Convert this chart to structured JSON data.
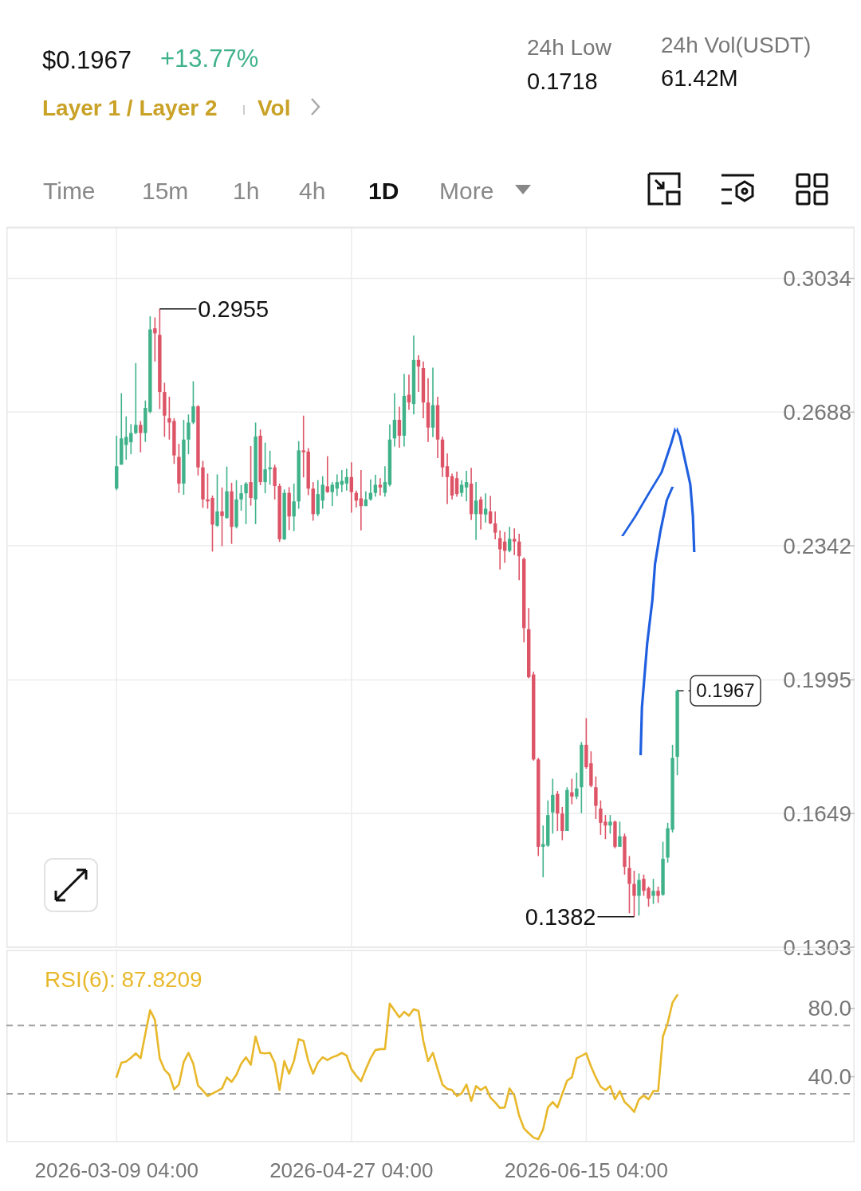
{
  "chart_data": [
    {
      "type": "candlestick",
      "annotations": [
        "$0.1967",
        "+13.77%",
        "Layer 1 / Layer 2",
        "Vol",
        "24h Low",
        "0.1718",
        "24h Vol(USDT)",
        "61.42M",
        "Time",
        "15m",
        "1h",
        "4h",
        "1D",
        "More",
        {
          "text": "0.2955",
          "x": "2026-03-18",
          "y": 0.2955
        },
        {
          "text": "0.1382",
          "x": "2026-06-25",
          "y": 0.1382
        }
      ],
      "x": [
        "2026-03-09",
        "2026-03-10",
        "2026-03-11",
        "2026-03-12",
        "2026-03-13",
        "2026-03-14",
        "2026-03-15",
        "2026-03-16",
        "2026-03-17",
        "2026-03-18",
        "2026-03-19",
        "2026-03-20",
        "2026-03-21",
        "2026-03-22",
        "2026-03-23",
        "2026-03-24",
        "2026-03-25",
        "2026-03-26",
        "2026-03-27",
        "2026-03-28",
        "2026-03-29",
        "2026-03-30",
        "2026-03-31",
        "2026-04-01",
        "2026-04-02",
        "2026-04-03",
        "2026-04-04",
        "2026-04-05",
        "2026-04-06",
        "2026-04-07",
        "2026-04-08",
        "2026-04-09",
        "2026-04-10",
        "2026-04-11",
        "2026-04-12",
        "2026-04-13",
        "2026-04-14",
        "2026-04-15",
        "2026-04-16",
        "2026-04-17",
        "2026-04-18",
        "2026-04-19",
        "2026-04-20",
        "2026-04-21",
        "2026-04-22",
        "2026-04-23",
        "2026-04-24",
        "2026-04-25",
        "2026-04-26",
        "2026-04-27",
        "2026-04-28",
        "2026-04-29",
        "2026-04-30",
        "2026-05-01",
        "2026-05-02",
        "2026-05-03",
        "2026-05-04",
        "2026-05-05",
        "2026-05-06",
        "2026-05-07",
        "2026-05-08",
        "2026-05-09",
        "2026-05-10",
        "2026-05-11",
        "2026-05-12",
        "2026-05-13",
        "2026-05-14",
        "2026-05-15",
        "2026-05-16",
        "2026-05-17",
        "2026-05-18",
        "2026-05-19",
        "2026-05-20",
        "2026-05-21",
        "2026-05-22",
        "2026-05-23",
        "2026-05-24",
        "2026-05-25",
        "2026-05-26",
        "2026-05-27",
        "2026-05-28",
        "2026-05-29",
        "2026-05-30",
        "2026-05-31",
        "2026-06-01",
        "2026-06-02",
        "2026-06-03",
        "2026-06-04",
        "2026-06-05",
        "2026-06-06",
        "2026-06-07",
        "2026-06-08",
        "2026-06-09",
        "2026-06-10",
        "2026-06-11",
        "2026-06-12",
        "2026-06-13",
        "2026-06-14",
        "2026-06-15",
        "2026-06-16",
        "2026-06-17",
        "2026-06-18",
        "2026-06-19",
        "2026-06-20",
        "2026-06-21",
        "2026-06-22",
        "2026-06-23",
        "2026-06-24",
        "2026-06-25",
        "2026-06-26",
        "2026-06-27",
        "2026-06-28",
        "2026-06-29",
        "2026-06-30",
        "2026-07-01",
        "2026-07-02",
        "2026-07-03",
        "2026-07-04"
      ],
      "ohlc": [
        [
          0.249,
          0.2627,
          0.2486,
          0.2548
        ],
        [
          0.2552,
          0.2737,
          0.2552,
          0.262
        ],
        [
          0.2603,
          0.2677,
          0.2565,
          0.2624
        ],
        [
          0.261,
          0.2657,
          0.2579,
          0.2634
        ],
        [
          0.2634,
          0.2815,
          0.2631,
          0.2655
        ],
        [
          0.2655,
          0.2665,
          0.2584,
          0.2634
        ],
        [
          0.2634,
          0.2718,
          0.2611,
          0.2699
        ],
        [
          0.2689,
          0.2936,
          0.2685,
          0.2902
        ],
        [
          0.2905,
          0.2933,
          0.2819,
          0.2892
        ],
        [
          0.2888,
          0.2955,
          0.2696,
          0.274
        ],
        [
          0.274,
          0.2764,
          0.2624,
          0.2679
        ],
        [
          0.2672,
          0.2728,
          0.2617,
          0.2661
        ],
        [
          0.2665,
          0.2672,
          0.2554,
          0.2576
        ],
        [
          0.2572,
          0.2606,
          0.2479,
          0.2503
        ],
        [
          0.2503,
          0.2668,
          0.2474,
          0.2617
        ],
        [
          0.2617,
          0.2682,
          0.2579,
          0.2661
        ],
        [
          0.2661,
          0.2768,
          0.2657,
          0.2703
        ],
        [
          0.2703,
          0.2706,
          0.2524,
          0.2545
        ],
        [
          0.2545,
          0.2562,
          0.244,
          0.2462
        ],
        [
          0.2462,
          0.2529,
          0.2438,
          0.2457
        ],
        [
          0.2466,
          0.2472,
          0.2327,
          0.2397
        ],
        [
          0.2394,
          0.2527,
          0.2391,
          0.2431
        ],
        [
          0.2431,
          0.2493,
          0.2341,
          0.2419
        ],
        [
          0.2414,
          0.2547,
          0.2412,
          0.2483
        ],
        [
          0.2483,
          0.2505,
          0.2347,
          0.2391
        ],
        [
          0.2391,
          0.2512,
          0.2387,
          0.2462
        ],
        [
          0.2462,
          0.2499,
          0.2433,
          0.2478
        ],
        [
          0.2478,
          0.2507,
          0.2398,
          0.2503
        ],
        [
          0.2507,
          0.26,
          0.2446,
          0.2466
        ],
        [
          0.2462,
          0.2661,
          0.2398,
          0.2625
        ],
        [
          0.2627,
          0.2643,
          0.2499,
          0.2507
        ],
        [
          0.2507,
          0.2609,
          0.2478,
          0.254
        ],
        [
          0.254,
          0.2588,
          0.25,
          0.2545
        ],
        [
          0.2545,
          0.2552,
          0.2462,
          0.2497
        ],
        [
          0.2497,
          0.2503,
          0.2352,
          0.2359
        ],
        [
          0.2359,
          0.2488,
          0.2357,
          0.2479
        ],
        [
          0.2479,
          0.2494,
          0.2383,
          0.2418
        ],
        [
          0.2418,
          0.2503,
          0.238,
          0.2457
        ],
        [
          0.2457,
          0.2613,
          0.2438,
          0.2589
        ],
        [
          0.2589,
          0.2679,
          0.2519,
          0.2584
        ],
        [
          0.2586,
          0.2595,
          0.2473,
          0.249
        ],
        [
          0.249,
          0.2507,
          0.2407,
          0.2424
        ],
        [
          0.2424,
          0.2512,
          0.2419,
          0.2476
        ],
        [
          0.2459,
          0.2522,
          0.2438,
          0.25
        ],
        [
          0.2496,
          0.2574,
          0.2479,
          0.2481
        ],
        [
          0.2481,
          0.2507,
          0.2445,
          0.25
        ],
        [
          0.249,
          0.2527,
          0.2471,
          0.2507
        ],
        [
          0.25,
          0.2538,
          0.2481,
          0.251
        ],
        [
          0.2503,
          0.2542,
          0.2485,
          0.252
        ],
        [
          0.252,
          0.2558,
          0.2428,
          0.2481
        ],
        [
          0.2479,
          0.2485,
          0.2441,
          0.2459
        ],
        [
          0.2465,
          0.2538,
          0.2382,
          0.2445
        ],
        [
          0.2445,
          0.2483,
          0.2445,
          0.2462
        ],
        [
          0.2462,
          0.2514,
          0.2459,
          0.2479
        ],
        [
          0.2479,
          0.2526,
          0.2469,
          0.25
        ],
        [
          0.25,
          0.2517,
          0.2472,
          0.2493
        ],
        [
          0.2479,
          0.2548,
          0.2469,
          0.2507
        ],
        [
          0.25,
          0.2656,
          0.2496,
          0.2617
        ],
        [
          0.262,
          0.2737,
          0.2599,
          0.2668
        ],
        [
          0.2668,
          0.2702,
          0.2596,
          0.2627
        ],
        [
          0.2627,
          0.2787,
          0.2599,
          0.273
        ],
        [
          0.2733,
          0.2785,
          0.2694,
          0.2713
        ],
        [
          0.2709,
          0.2886,
          0.2682,
          0.2823
        ],
        [
          0.2823,
          0.2835,
          0.274,
          0.2806
        ],
        [
          0.2802,
          0.2819,
          0.2672,
          0.2713
        ],
        [
          0.2713,
          0.2776,
          0.2611,
          0.2648
        ],
        [
          0.2648,
          0.2803,
          0.2623,
          0.2706
        ],
        [
          0.2706,
          0.2728,
          0.2569,
          0.2617
        ],
        [
          0.2617,
          0.2624,
          0.252,
          0.2545
        ],
        [
          0.2548,
          0.2581,
          0.245,
          0.252
        ],
        [
          0.2522,
          0.2529,
          0.2462,
          0.2472
        ],
        [
          0.2517,
          0.2534,
          0.2469,
          0.2476
        ],
        [
          0.2479,
          0.2512,
          0.2469,
          0.25
        ],
        [
          0.2493,
          0.2536,
          0.2457,
          0.2507
        ],
        [
          0.2503,
          0.2544,
          0.2409,
          0.2424
        ],
        [
          0.2424,
          0.2507,
          0.2357,
          0.2459
        ],
        [
          0.2462,
          0.2469,
          0.2384,
          0.2424
        ],
        [
          0.2423,
          0.2478,
          0.2402,
          0.2438
        ],
        [
          0.2431,
          0.2471,
          0.2398,
          0.24
        ],
        [
          0.24,
          0.2431,
          0.2359,
          0.2376
        ],
        [
          0.2362,
          0.2382,
          0.2281,
          0.2333
        ],
        [
          0.2353,
          0.2378,
          0.2298,
          0.2329
        ],
        [
          0.2329,
          0.2391,
          0.2325,
          0.236
        ],
        [
          0.236,
          0.2387,
          0.2318,
          0.2353
        ],
        [
          0.2353,
          0.2373,
          0.2253,
          0.2315
        ],
        [
          0.2308,
          0.2312,
          0.2092,
          0.2129
        ],
        [
          0.2126,
          0.2181,
          0.1999,
          0.2002
        ],
        [
          0.2009,
          0.2016,
          0.1786,
          0.1789
        ],
        [
          0.1789,
          0.1793,
          0.1539,
          0.1563
        ],
        [
          0.1563,
          0.1618,
          0.1484,
          0.157
        ],
        [
          0.1566,
          0.1683,
          0.1563,
          0.1645
        ],
        [
          0.1652,
          0.1739,
          0.1597,
          0.1697
        ],
        [
          0.17,
          0.1707,
          0.1604,
          0.1649
        ],
        [
          0.1649,
          0.1666,
          0.158,
          0.1604
        ],
        [
          0.1604,
          0.1717,
          0.1604,
          0.171
        ],
        [
          0.1704,
          0.1739,
          0.1673,
          0.1693
        ],
        [
          0.1693,
          0.1755,
          0.1686,
          0.1714
        ],
        [
          0.1717,
          0.1834,
          0.165,
          0.1827
        ],
        [
          0.1827,
          0.1896,
          0.1765,
          0.1769
        ],
        [
          0.1779,
          0.181,
          0.1717,
          0.1721
        ],
        [
          0.1717,
          0.1745,
          0.1635,
          0.1669
        ],
        [
          0.1662,
          0.1683,
          0.1594,
          0.1625
        ],
        [
          0.1628,
          0.1645,
          0.1583,
          0.1618
        ],
        [
          0.1618,
          0.1645,
          0.1597,
          0.1628
        ],
        [
          0.1628,
          0.1631,
          0.1559,
          0.1563
        ],
        [
          0.1563,
          0.1628,
          0.1563,
          0.159
        ],
        [
          0.159,
          0.1597,
          0.1491,
          0.1511
        ],
        [
          0.1508,
          0.1539,
          0.1391,
          0.1467
        ],
        [
          0.1467,
          0.1501,
          0.1382,
          0.1436
        ],
        [
          0.1436,
          0.1494,
          0.1385,
          0.1477
        ],
        [
          0.148,
          0.1491,
          0.1436,
          0.1449
        ],
        [
          0.1456,
          0.146,
          0.1408,
          0.1429
        ],
        [
          0.1436,
          0.148,
          0.1415,
          0.1449
        ],
        [
          0.1449,
          0.146,
          0.1418,
          0.1436
        ],
        [
          0.1439,
          0.1576,
          0.1436,
          0.1532
        ],
        [
          0.1535,
          0.1625,
          0.1522,
          0.1611
        ],
        [
          0.1607,
          0.1827,
          0.16,
          0.1793
        ],
        [
          0.1796,
          0.197,
          0.1748,
          0.1967
        ]
      ],
      "colors": [
        "#3fb28a",
        "#3fb28a",
        "#3fb28a",
        "#3fb28a",
        "#3fb28a",
        "#dd5467",
        "#3fb28a",
        "#3fb28a",
        "#dd5467",
        "#dd5467",
        "#dd5467",
        "#dd5467",
        "#dd5467",
        "#dd5467",
        "#3fb28a",
        "#3fb28a",
        "#3fb28a",
        "#dd5467",
        "#dd5467",
        "#dd5467",
        "#dd5467",
        "#3fb28a",
        "#dd5467",
        "#3fb28a",
        "#dd5467",
        "#3fb28a",
        "#3fb28a",
        "#3fb28a",
        "#dd5467",
        "#3fb28a",
        "#dd5467",
        "#3fb28a",
        "#3fb28a",
        "#dd5467",
        "#dd5467",
        "#3fb28a",
        "#dd5467",
        "#3fb28a",
        "#3fb28a",
        "#dd5467",
        "#dd5467",
        "#dd5467",
        "#3fb28a",
        "#3fb28a",
        "#dd5467",
        "#3fb28a",
        "#3fb28a",
        "#3fb28a",
        "#3fb28a",
        "#dd5467",
        "#dd5467",
        "#dd5467",
        "#3fb28a",
        "#3fb28a",
        "#3fb28a",
        "#dd5467",
        "#3fb28a",
        "#3fb28a",
        "#3fb28a",
        "#dd5467",
        "#3fb28a",
        "#dd5467",
        "#3fb28a",
        "#dd5467",
        "#dd5467",
        "#dd5467",
        "#3fb28a",
        "#dd5467",
        "#dd5467",
        "#dd5467",
        "#dd5467",
        "#dd5467",
        "#3fb28a",
        "#3fb28a",
        "#dd5467",
        "#3fb28a",
        "#dd5467",
        "#3fb28a",
        "#dd5467",
        "#dd5467",
        "#dd5467",
        "#dd5467",
        "#3fb28a",
        "#dd5467",
        "#dd5467",
        "#dd5467",
        "#dd5467",
        "#dd5467",
        "#dd5467",
        "#3fb28a",
        "#3fb28a",
        "#3fb28a",
        "#dd5467",
        "#dd5467",
        "#3fb28a",
        "#dd5467",
        "#3fb28a",
        "#3fb28a",
        "#dd5467",
        "#dd5467",
        "#dd5467",
        "#dd5467",
        "#dd5467",
        "#3fb28a",
        "#dd5467",
        "#3fb28a",
        "#dd5467",
        "#dd5467",
        "#dd5467",
        "#3fb28a",
        "#dd5467",
        "#dd5467",
        "#3fb28a",
        "#dd5467",
        "#3fb28a",
        "#3fb28a",
        "#3fb28a",
        "#3fb28a"
      ],
      "xlim": [
        "2026-02-14",
        "2026-08-10"
      ],
      "xticks": [
        {
          "value": "2026-03-09",
          "label": null
        },
        {
          "value": "2026-04-27",
          "label": null
        },
        {
          "value": "2026-06-15",
          "label": null
        }
      ],
      "ylim": [
        0.1303,
        0.3165
      ],
      "yticks": [
        0.1303,
        0.1649,
        0.1995,
        0.2342,
        0.2688,
        0.3034
      ],
      "ref_lines": [
        {
          "axis": "y",
          "value": 0.1967,
          "label": "0.1967",
          "line_style": "dashed",
          "color": "#333333"
        }
      ],
      "grid": true,
      "tick_labels": "y"
    },
    {
      "type": "line",
      "legend": "top left",
      "x": [
        "2026-03-09",
        "2026-03-10",
        "2026-03-11",
        "2026-03-12",
        "2026-03-13",
        "2026-03-14",
        "2026-03-15",
        "2026-03-16",
        "2026-03-17",
        "2026-03-18",
        "2026-03-19",
        "2026-03-20",
        "2026-03-21",
        "2026-03-22",
        "2026-03-23",
        "2026-03-24",
        "2026-03-25",
        "2026-03-26",
        "2026-03-27",
        "2026-03-28",
        "2026-03-29",
        "2026-03-30",
        "2026-03-31",
        "2026-04-01",
        "2026-04-02",
        "2026-04-03",
        "2026-04-04",
        "2026-04-05",
        "2026-04-06",
        "2026-04-07",
        "2026-04-08",
        "2026-04-09",
        "2026-04-10",
        "2026-04-11",
        "2026-04-12",
        "2026-04-13",
        "2026-04-14",
        "2026-04-15",
        "2026-04-16",
        "2026-04-17",
        "2026-04-18",
        "2026-04-19",
        "2026-04-20",
        "2026-04-21",
        "2026-04-22",
        "2026-04-23",
        "2026-04-24",
        "2026-04-25",
        "2026-04-26",
        "2026-04-27",
        "2026-04-28",
        "2026-04-29",
        "2026-04-30",
        "2026-05-01",
        "2026-05-02",
        "2026-05-03",
        "2026-05-04",
        "2026-05-05",
        "2026-05-06",
        "2026-05-07",
        "2026-05-08",
        "2026-05-09",
        "2026-05-10",
        "2026-05-11",
        "2026-05-12",
        "2026-05-13",
        "2026-05-14",
        "2026-05-15",
        "2026-05-16",
        "2026-05-17",
        "2026-05-18",
        "2026-05-19",
        "2026-05-20",
        "2026-05-21",
        "2026-05-22",
        "2026-05-23",
        "2026-05-24",
        "2026-05-25",
        "2026-05-26",
        "2026-05-27",
        "2026-05-28",
        "2026-05-29",
        "2026-05-30",
        "2026-05-31",
        "2026-06-01",
        "2026-06-02",
        "2026-06-03",
        "2026-06-04",
        "2026-06-05",
        "2026-06-06",
        "2026-06-07",
        "2026-06-08",
        "2026-06-09",
        "2026-06-10",
        "2026-06-11",
        "2026-06-12",
        "2026-06-13",
        "2026-06-14",
        "2026-06-15",
        "2026-06-16",
        "2026-06-17",
        "2026-06-18",
        "2026-06-19",
        "2026-06-20",
        "2026-06-21",
        "2026-06-22",
        "2026-06-23",
        "2026-06-24",
        "2026-06-25",
        "2026-06-26",
        "2026-06-27",
        "2026-06-28",
        "2026-06-29",
        "2026-06-30",
        "2026-07-01",
        "2026-07-02",
        "2026-07-03",
        "2026-07-04"
      ],
      "series": [
        {
          "name": "RSI(6): 87.8209",
          "color": "#e8b82a",
          "values": [
            39.9,
            48.2,
            48.9,
            51.1,
            53.7,
            50.8,
            65.2,
            79.0,
            73.2,
            50.8,
            44.1,
            41.2,
            32.6,
            35.4,
            48.6,
            54.0,
            47.6,
            34.8,
            31.9,
            28.7,
            30.2,
            31.6,
            33.2,
            39.6,
            37.0,
            41.2,
            47.6,
            51.4,
            47.0,
            63.6,
            54.0,
            53.7,
            54.0,
            48.2,
            32.2,
            49.2,
            41.8,
            49.2,
            62.0,
            61.0,
            49.2,
            41.8,
            48.2,
            51.4,
            49.8,
            51.4,
            52.4,
            54.0,
            52.4,
            44.4,
            40.6,
            37.4,
            44.4,
            50.8,
            55.6,
            56.2,
            56.2,
            82.8,
            78.8,
            74.8,
            78.0,
            75.8,
            79.6,
            78.6,
            61.0,
            49.2,
            54.0,
            44.4,
            35.4,
            32.9,
            32.2,
            28.7,
            30.3,
            35.4,
            25.8,
            34.5,
            32.2,
            34.2,
            27.8,
            24.9,
            21.7,
            22.0,
            33.2,
            29.0,
            17.2,
            9.8,
            6.9,
            4.4,
            3.4,
            9.2,
            22.0,
            25.2,
            22.0,
            30.0,
            37.7,
            39.6,
            50.8,
            52.2,
            53.7,
            46.0,
            39.6,
            34.2,
            32.2,
            34.5,
            26.8,
            31.6,
            25.2,
            22.6,
            19.4,
            26.8,
            29.0,
            26.8,
            31.6,
            31.6,
            63.6,
            71.6,
            83.4,
            87.8
          ]
        }
      ],
      "xlim": [
        "2026-02-14",
        "2026-08-10"
      ],
      "xticks": [
        {
          "value": "2026-03-09",
          "label": "2026-03-09 04:00"
        },
        {
          "value": "2026-04-27",
          "label": "2026-04-27 04:00"
        },
        {
          "value": "2026-06-15",
          "label": "2026-06-15 04:00"
        }
      ],
      "ylim": [
        2,
        114
      ],
      "yticks": [
        {
          "value": 80,
          "label": "80.0"
        },
        {
          "value": 40,
          "label": "40.0"
        }
      ],
      "ref_lines": [
        {
          "axis": "y",
          "value": 70,
          "line_style": "dashed",
          "color": "#a0a0a0"
        },
        {
          "axis": "y",
          "value": 30,
          "line_style": "dashed",
          "color": "#a0a0a0"
        }
      ],
      "grid": "x"
    }
  ]
}
